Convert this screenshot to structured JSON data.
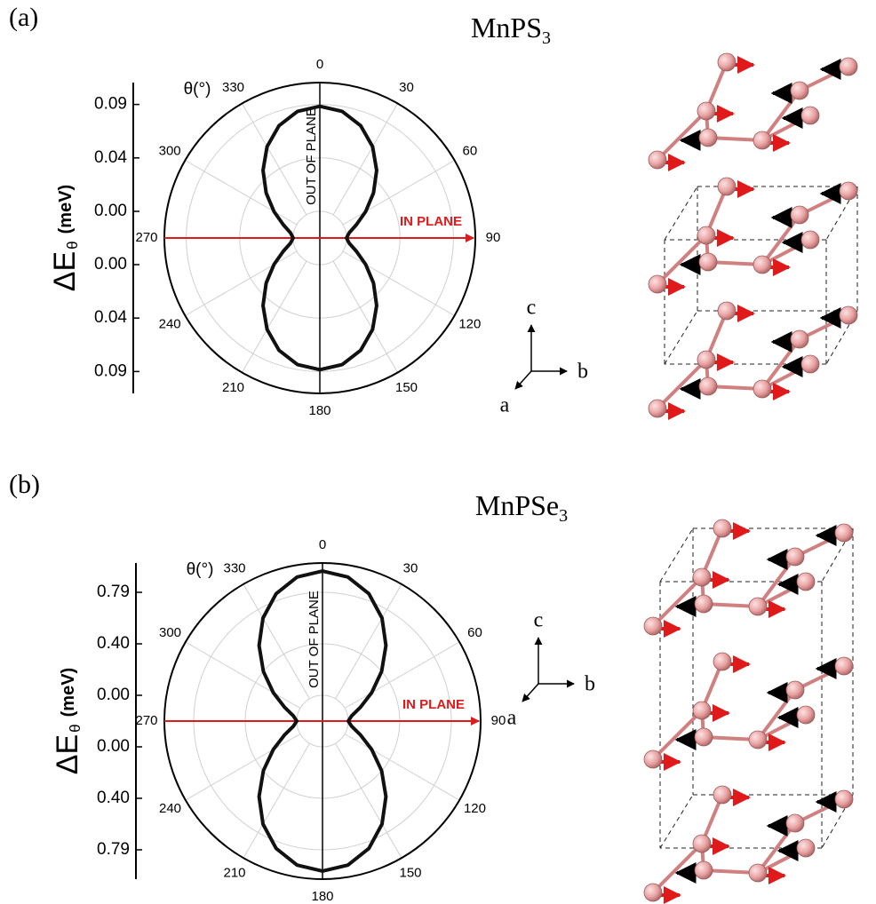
{
  "chart_data": [
    {
      "type": "polar",
      "panel": "(a)",
      "title": "MnPS",
      "title_subscript": "3",
      "ylabel": "ΔE",
      "ylabel_subscript": "θ",
      "ylabel_unit": "(meV)",
      "theta_label": "θ(°)",
      "annotations": [
        "OUT OF PLANE",
        "IN PLANE"
      ],
      "crystal_axes": [
        "c",
        "b",
        "a"
      ],
      "x": [
        0,
        10,
        20,
        30,
        40,
        50,
        60,
        70,
        80,
        90,
        100,
        110,
        120,
        130,
        140,
        150,
        160,
        170,
        180,
        190,
        200,
        210,
        220,
        230,
        240,
        250,
        260,
        270,
        280,
        290,
        300,
        310,
        320,
        330,
        340,
        350
      ],
      "series": [
        {
          "color": "#111111",
          "values": [
            0.0865,
            0.0839,
            0.0764,
            0.0649,
            0.0508,
            0.0357,
            0.0216,
            0.0101,
            0.0026,
            0,
            0.0026,
            0.0101,
            0.0216,
            0.0357,
            0.0508,
            0.0649,
            0.0764,
            0.0839,
            0.0865,
            0.0839,
            0.0764,
            0.0649,
            0.0508,
            0.0357,
            0.0216,
            0.0101,
            0.0026,
            0,
            0.0026,
            0.0101,
            0.0216,
            0.0357,
            0.0508,
            0.0649,
            0.0764,
            0.0839
          ]
        }
      ],
      "ylim": [
        0,
        0.106
      ],
      "yticks": [
        {
          "value": 0,
          "label": "0.00"
        },
        {
          "value": 0.044,
          "label": "0.04"
        },
        {
          "value": 0.088,
          "label": "0.09"
        }
      ],
      "xticks": [
        0,
        30,
        60,
        90,
        120,
        150,
        180,
        210,
        240,
        270,
        300,
        330
      ],
      "grid": true
    },
    {
      "type": "polar",
      "panel": "(b)",
      "title": "MnPSe",
      "title_subscript": "3",
      "ylabel": "ΔE",
      "ylabel_subscript": "θ",
      "ylabel_unit": "(meV)",
      "theta_label": "θ(°)",
      "annotations": [
        "OUT OF PLANE",
        "IN PLANE"
      ],
      "crystal_axes": [
        "c",
        "b",
        "a"
      ],
      "x": [
        0,
        10,
        20,
        30,
        40,
        50,
        60,
        70,
        80,
        90,
        100,
        110,
        120,
        130,
        140,
        150,
        160,
        170,
        180,
        190,
        200,
        210,
        220,
        230,
        240,
        250,
        260,
        270,
        280,
        290,
        300,
        310,
        320,
        330,
        340,
        350
      ],
      "series": [
        {
          "color": "#111111",
          "values": [
            0.953,
            0.924,
            0.842,
            0.715,
            0.559,
            0.394,
            0.238,
            0.112,
            0.029,
            0,
            0.029,
            0.112,
            0.238,
            0.394,
            0.559,
            0.715,
            0.842,
            0.924,
            0.953,
            0.924,
            0.842,
            0.715,
            0.559,
            0.394,
            0.238,
            0.112,
            0.029,
            0,
            0.029,
            0.112,
            0.238,
            0.394,
            0.559,
            0.715,
            0.842,
            0.924
          ]
        }
      ],
      "ylim": [
        0,
        1.015
      ],
      "yticks": [
        {
          "value": 0,
          "label": "0.00"
        },
        {
          "value": 0.395,
          "label": "0.40"
        },
        {
          "value": 0.79,
          "label": "0.79"
        }
      ],
      "xticks": [
        0,
        30,
        60,
        90,
        120,
        150,
        180,
        210,
        240,
        270,
        300,
        330
      ],
      "grid": true
    }
  ]
}
